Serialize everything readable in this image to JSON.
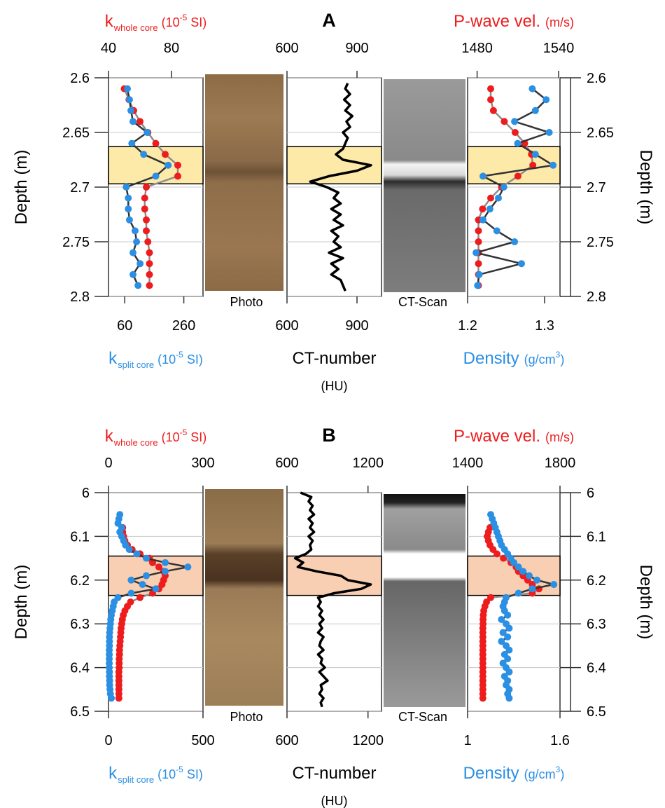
{
  "chart_data": [
    {
      "type": "well-log",
      "title": "A",
      "ylabel": "Depth (m)",
      "ylim": [
        2.6,
        2.8
      ],
      "yticks": [
        2.6,
        2.65,
        2.7,
        2.75,
        2.8
      ],
      "grid": true,
      "highlight": [
        2.663,
        2.697
      ],
      "highlight_color": "#fde9a8",
      "photo_label": "Photo",
      "ct_scan_label": "CT-Scan",
      "depth": [
        2.61,
        2.62,
        2.63,
        2.64,
        2.65,
        2.66,
        2.67,
        2.68,
        2.69,
        2.7,
        2.71,
        2.72,
        2.73,
        2.74,
        2.75,
        2.76,
        2.77,
        2.78,
        2.79
      ],
      "tracks": [
        {
          "top_label": [
            "k",
            "whole core",
            "(10",
            "-5",
            "SI)"
          ],
          "bottom_label": [
            "k",
            "split core",
            "(10",
            "-5",
            "SI)"
          ],
          "top_axis": {
            "xlim": [
              40,
              100
            ],
            "xticks": [
              40,
              80
            ]
          },
          "bottom_axis": {
            "xlim": [
              5,
              325
            ],
            "xticks": [
              60,
              260
            ]
          },
          "series": [
            {
              "axis": "top",
              "color": "#ee1c1c",
              "line_color": "#8c8c8c",
              "values": [
                50,
                53,
                56,
                60,
                65,
                70,
                76,
                84,
                84,
                64,
                63,
                63,
                64,
                64,
                65,
                66,
                66,
                66,
                66
              ]
            },
            {
              "axis": "bottom",
              "color": "#2b8fe3",
              "line_color": "#333333",
              "values": [
                69,
                76,
                81,
                88,
                136,
                84,
                124,
                207,
                165,
                65,
                72,
                72,
                76,
                95,
                100,
                88,
                112,
                88,
                105
              ]
            }
          ]
        },
        {
          "bottom_label": [
            "CT-number",
            "(HU)"
          ],
          "top_axis": {
            "xlim": [
              600,
              1005
            ],
            "xticks": [
              600,
              900
            ]
          },
          "bottom_axis": {
            "xlim": [
              600,
              1005
            ],
            "xticks": [
              600,
              900
            ]
          },
          "depth": [
            2.605,
            2.61,
            2.615,
            2.62,
            2.625,
            2.63,
            2.635,
            2.64,
            2.645,
            2.65,
            2.655,
            2.66,
            2.665,
            2.67,
            2.675,
            2.68,
            2.685,
            2.69,
            2.695,
            2.7,
            2.705,
            2.71,
            2.715,
            2.72,
            2.725,
            2.73,
            2.735,
            2.74,
            2.745,
            2.75,
            2.755,
            2.76,
            2.765,
            2.77,
            2.775,
            2.78,
            2.785,
            2.79,
            2.795
          ],
          "series": [
            {
              "axis": "top",
              "color": "#000000",
              "line_color": "#000000",
              "values": [
                860,
                850,
                870,
                845,
                870,
                850,
                880,
                855,
                870,
                840,
                860,
                850,
                840,
                810,
                840,
                960,
                900,
                780,
                700,
                770,
                820,
                800,
                830,
                790,
                830,
                800,
                840,
                790,
                820,
                800,
                830,
                780,
                840,
                790,
                820,
                790,
                830,
                840,
                850
              ]
            }
          ]
        },
        {
          "top_label": [
            "P-wave vel.",
            "(m/s)"
          ],
          "bottom_label": [
            "Density",
            "(g/cm",
            "3",
            ")"
          ],
          "top_axis": {
            "xlim": [
              1473,
              1541
            ],
            "xticks": [
              1480,
              1540
            ]
          },
          "bottom_axis": {
            "xlim": [
              1.2,
              1.32
            ],
            "xticks": [
              1.2,
              1.3
            ]
          },
          "series": [
            {
              "axis": "top",
              "color": "#ee1c1c",
              "line_color": "#8c8c8c",
              "values": [
                1490,
                1490,
                1492,
                1500,
                1508,
                1515,
                1520,
                1521,
                1510,
                1498,
                1490,
                1484,
                1481,
                1481,
                1481,
                1481,
                1481,
                1481,
                1481
              ]
            },
            {
              "axis": "bottom",
              "color": "#2b8fe3",
              "line_color": "#333333",
              "values": [
                1.284,
                1.302,
                1.288,
                1.261,
                1.306,
                1.265,
                1.288,
                1.311,
                1.22,
                1.247,
                1.24,
                1.229,
                1.22,
                1.238,
                1.261,
                1.211,
                1.27,
                1.215,
                1.213
              ]
            }
          ]
        }
      ]
    },
    {
      "type": "well-log",
      "title": "B",
      "ylabel": "Depth (m)",
      "ylim": [
        6,
        6.5
      ],
      "yticks": [
        6,
        6.1,
        6.2,
        6.3,
        6.4,
        6.5
      ],
      "grid": true,
      "highlight": [
        6.145,
        6.235
      ],
      "highlight_color": "#f9cfb3",
      "photo_label": "Photo",
      "ct_scan_label": "CT-Scan",
      "depth": [
        6.05,
        6.06,
        6.07,
        6.08,
        6.09,
        6.1,
        6.11,
        6.12,
        6.13,
        6.14,
        6.15,
        6.16,
        6.17,
        6.18,
        6.19,
        6.2,
        6.21,
        6.22,
        6.23,
        6.24,
        6.25,
        6.26,
        6.27,
        6.28,
        6.29,
        6.3,
        6.31,
        6.32,
        6.33,
        6.34,
        6.35,
        6.36,
        6.37,
        6.38,
        6.39,
        6.4,
        6.41,
        6.42,
        6.43,
        6.44,
        6.45,
        6.46,
        6.47
      ],
      "tracks": [
        {
          "top_label": [
            "k",
            "whole core",
            "(10",
            "-5",
            "SI)"
          ],
          "bottom_label": [
            "k",
            "split core",
            "(10",
            "-5",
            "SI)"
          ],
          "top_axis": {
            "xlim": [
              0,
              300
            ],
            "xticks": [
              0,
              300
            ]
          },
          "bottom_axis": {
            "xlim": [
              0,
              500
            ],
            "xticks": [
              0,
              500
            ]
          },
          "series": [
            {
              "axis": "top",
              "color": "#ee1c1c",
              "line_color": "#8c8c8c",
              "values": [
                null,
                null,
                null,
                45,
                45,
                48,
                52,
                60,
                75,
                100,
                130,
                140,
                160,
                175,
                180,
                175,
                170,
                160,
                140,
                100,
                70,
                60,
                52,
                47,
                44,
                42,
                40,
                39,
                38,
                37,
                36,
                35,
                35,
                34,
                34,
                34,
                33,
                33,
                33,
                33,
                33,
                33,
                33
              ]
            },
            {
              "axis": "bottom",
              "color": "#2b8fe3",
              "line_color": "#333333",
              "values": [
                60,
                55,
                50,
                70,
                60,
                70,
                80,
                90,
                110,
                150,
                200,
                300,
                420,
                300,
                200,
                120,
                180,
                250,
                120,
                50,
                30,
                25,
                20,
                15,
                12,
                10,
                8,
                6,
                5,
                5,
                5,
                4,
                4,
                4,
                4,
                4,
                5,
                5,
                6,
                6,
                8,
                10,
                15
              ]
            }
          ]
        },
        {
          "bottom_label": [
            "CT-number",
            "(HU)"
          ],
          "top_axis": {
            "xlim": [
              600,
              1300
            ],
            "xticks": [
              600,
              1200
            ]
          },
          "bottom_axis": {
            "xlim": [
              600,
              1300
            ],
            "xticks": [
              600,
              1200
            ]
          },
          "depth": [
            6,
            6.01,
            6.02,
            6.03,
            6.04,
            6.05,
            6.06,
            6.07,
            6.08,
            6.09,
            6.1,
            6.11,
            6.12,
            6.13,
            6.14,
            6.15,
            6.16,
            6.17,
            6.18,
            6.19,
            6.2,
            6.21,
            6.22,
            6.23,
            6.24,
            6.25,
            6.26,
            6.27,
            6.28,
            6.29,
            6.3,
            6.31,
            6.32,
            6.33,
            6.34,
            6.35,
            6.36,
            6.37,
            6.38,
            6.39,
            6.4,
            6.41,
            6.42,
            6.43,
            6.44,
            6.45,
            6.46,
            6.47,
            6.48,
            6.49
          ],
          "series": [
            {
              "axis": "top",
              "color": "#000000",
              "line_color": "#000000",
              "values": [
                700,
                780,
                760,
                790,
                770,
                800,
                760,
                790,
                770,
                800,
                760,
                790,
                770,
                780,
                740,
                660,
                720,
                680,
                820,
                1000,
                1050,
                1220,
                1150,
                950,
                830,
                850,
                830,
                860,
                840,
                870,
                840,
                860,
                830,
                870,
                850,
                840,
                870,
                830,
                860,
                850,
                880,
                840,
                870,
                900,
                850,
                860,
                840,
                870,
                850,
                860
              ]
            }
          ]
        },
        {
          "top_label": [
            "P-wave vel.",
            "(m/s)"
          ],
          "bottom_label": [
            "Density",
            "(g/cm",
            "3",
            ")"
          ],
          "top_axis": {
            "xlim": [
              1400,
              1800
            ],
            "xticks": [
              1400,
              1800
            ]
          },
          "bottom_axis": {
            "xlim": [
              1,
              1.6
            ],
            "xticks": [
              1,
              1.6
            ]
          },
          "series": [
            {
              "axis": "top",
              "color": "#ee1c1c",
              "line_color": "#8c8c8c",
              "values": [
                null,
                null,
                null,
                1497,
                1490,
                1485,
                1490,
                1497,
                1510,
                1527,
                1555,
                1588,
                1610,
                1620,
                1640,
                1660,
                1680,
                1709,
                1680,
                1500,
                1482,
                1475,
                1470,
                1468,
                1467,
                1467,
                1466,
                1466,
                1466,
                1466,
                1466,
                1466,
                1466,
                1466,
                1466,
                1466,
                1466,
                1466,
                1466,
                1466,
                1466,
                1466,
                1466
              ]
            },
            {
              "axis": "bottom",
              "color": "#2b8fe3",
              "line_color": "#333333",
              "values": [
                1.15,
                1.16,
                1.17,
                1.18,
                1.19,
                1.2,
                1.21,
                1.22,
                1.24,
                1.26,
                1.28,
                1.3,
                1.33,
                1.36,
                1.4,
                1.45,
                1.56,
                1.42,
                1.33,
                1.25,
                1.24,
                1.23,
                1.24,
                1.26,
                1.22,
                1.25,
                1.27,
                1.23,
                1.26,
                1.22,
                1.25,
                1.27,
                1.24,
                1.26,
                1.23,
                1.25,
                1.27,
                1.24,
                1.26,
                1.25,
                1.27,
                1.26,
                1.27
              ]
            }
          ]
        }
      ]
    }
  ]
}
